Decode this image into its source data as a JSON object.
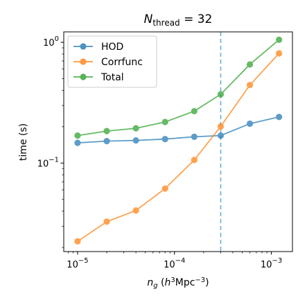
{
  "chart_data": {
    "type": "line",
    "title": {
      "main": "N",
      "sub": "thread",
      "rest": " = 32"
    },
    "xlabel": {
      "var": "n",
      "sub": "g",
      "pre": " (",
      "h": "h",
      "sup1": "3",
      "mid": "Mpc",
      "sup2": "−3",
      "post": ")"
    },
    "ylabel": "time (s)",
    "xscale": "log",
    "yscale": "log",
    "xlim": [
      7.2e-06,
      0.00165
    ],
    "ylim": [
      0.0185,
      1.22
    ],
    "xticks": [
      {
        "value": 1e-05,
        "base": "10",
        "exp": "−5"
      },
      {
        "value": 0.0001,
        "base": "10",
        "exp": "−4"
      },
      {
        "value": 0.001,
        "base": "10",
        "exp": "−3"
      }
    ],
    "yticks": [
      {
        "value": 0.1,
        "base": "10",
        "exp": "−1"
      },
      {
        "value": 1,
        "base": "10",
        "exp": "0"
      }
    ],
    "vline": {
      "x": 0.0003,
      "color": "#6baed6"
    },
    "legend_position": "upper-left",
    "x": [
      1e-05,
      2e-05,
      4e-05,
      8e-05,
      0.00016,
      0.0003,
      0.0006,
      0.0012
    ],
    "series": [
      {
        "name": "HOD",
        "color": "#1f77b4",
        "values": [
          0.147,
          0.152,
          0.154,
          0.158,
          0.165,
          0.169,
          0.212,
          0.241
        ]
      },
      {
        "name": "Corrfunc",
        "color": "#ff7f0e",
        "values": [
          0.0225,
          0.0327,
          0.0405,
          0.0615,
          0.106,
          0.201,
          0.443,
          0.81
        ]
      },
      {
        "name": "Total",
        "color": "#2ca02c",
        "values": [
          0.169,
          0.184,
          0.194,
          0.219,
          0.269,
          0.371,
          0.656,
          1.05
        ]
      }
    ]
  }
}
